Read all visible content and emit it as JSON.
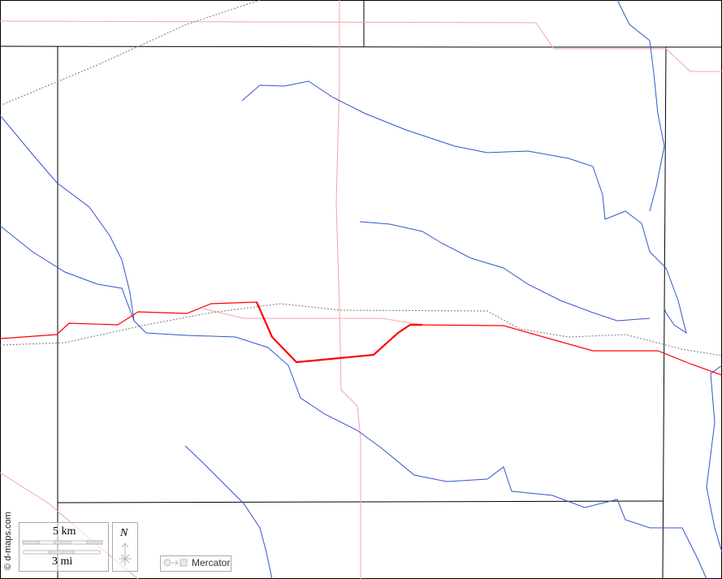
{
  "credit": "© d-maps.com",
  "scale": {
    "km_label": "5 km",
    "mi_label": "3 mi"
  },
  "north": {
    "label": "N"
  },
  "projection": {
    "label": "Mercator"
  },
  "colors": {
    "river": "#3355cc",
    "main_road": "#ff0000",
    "minor_road": "#f4a6a6",
    "boundary": "#000000",
    "railway": "#777777"
  }
}
